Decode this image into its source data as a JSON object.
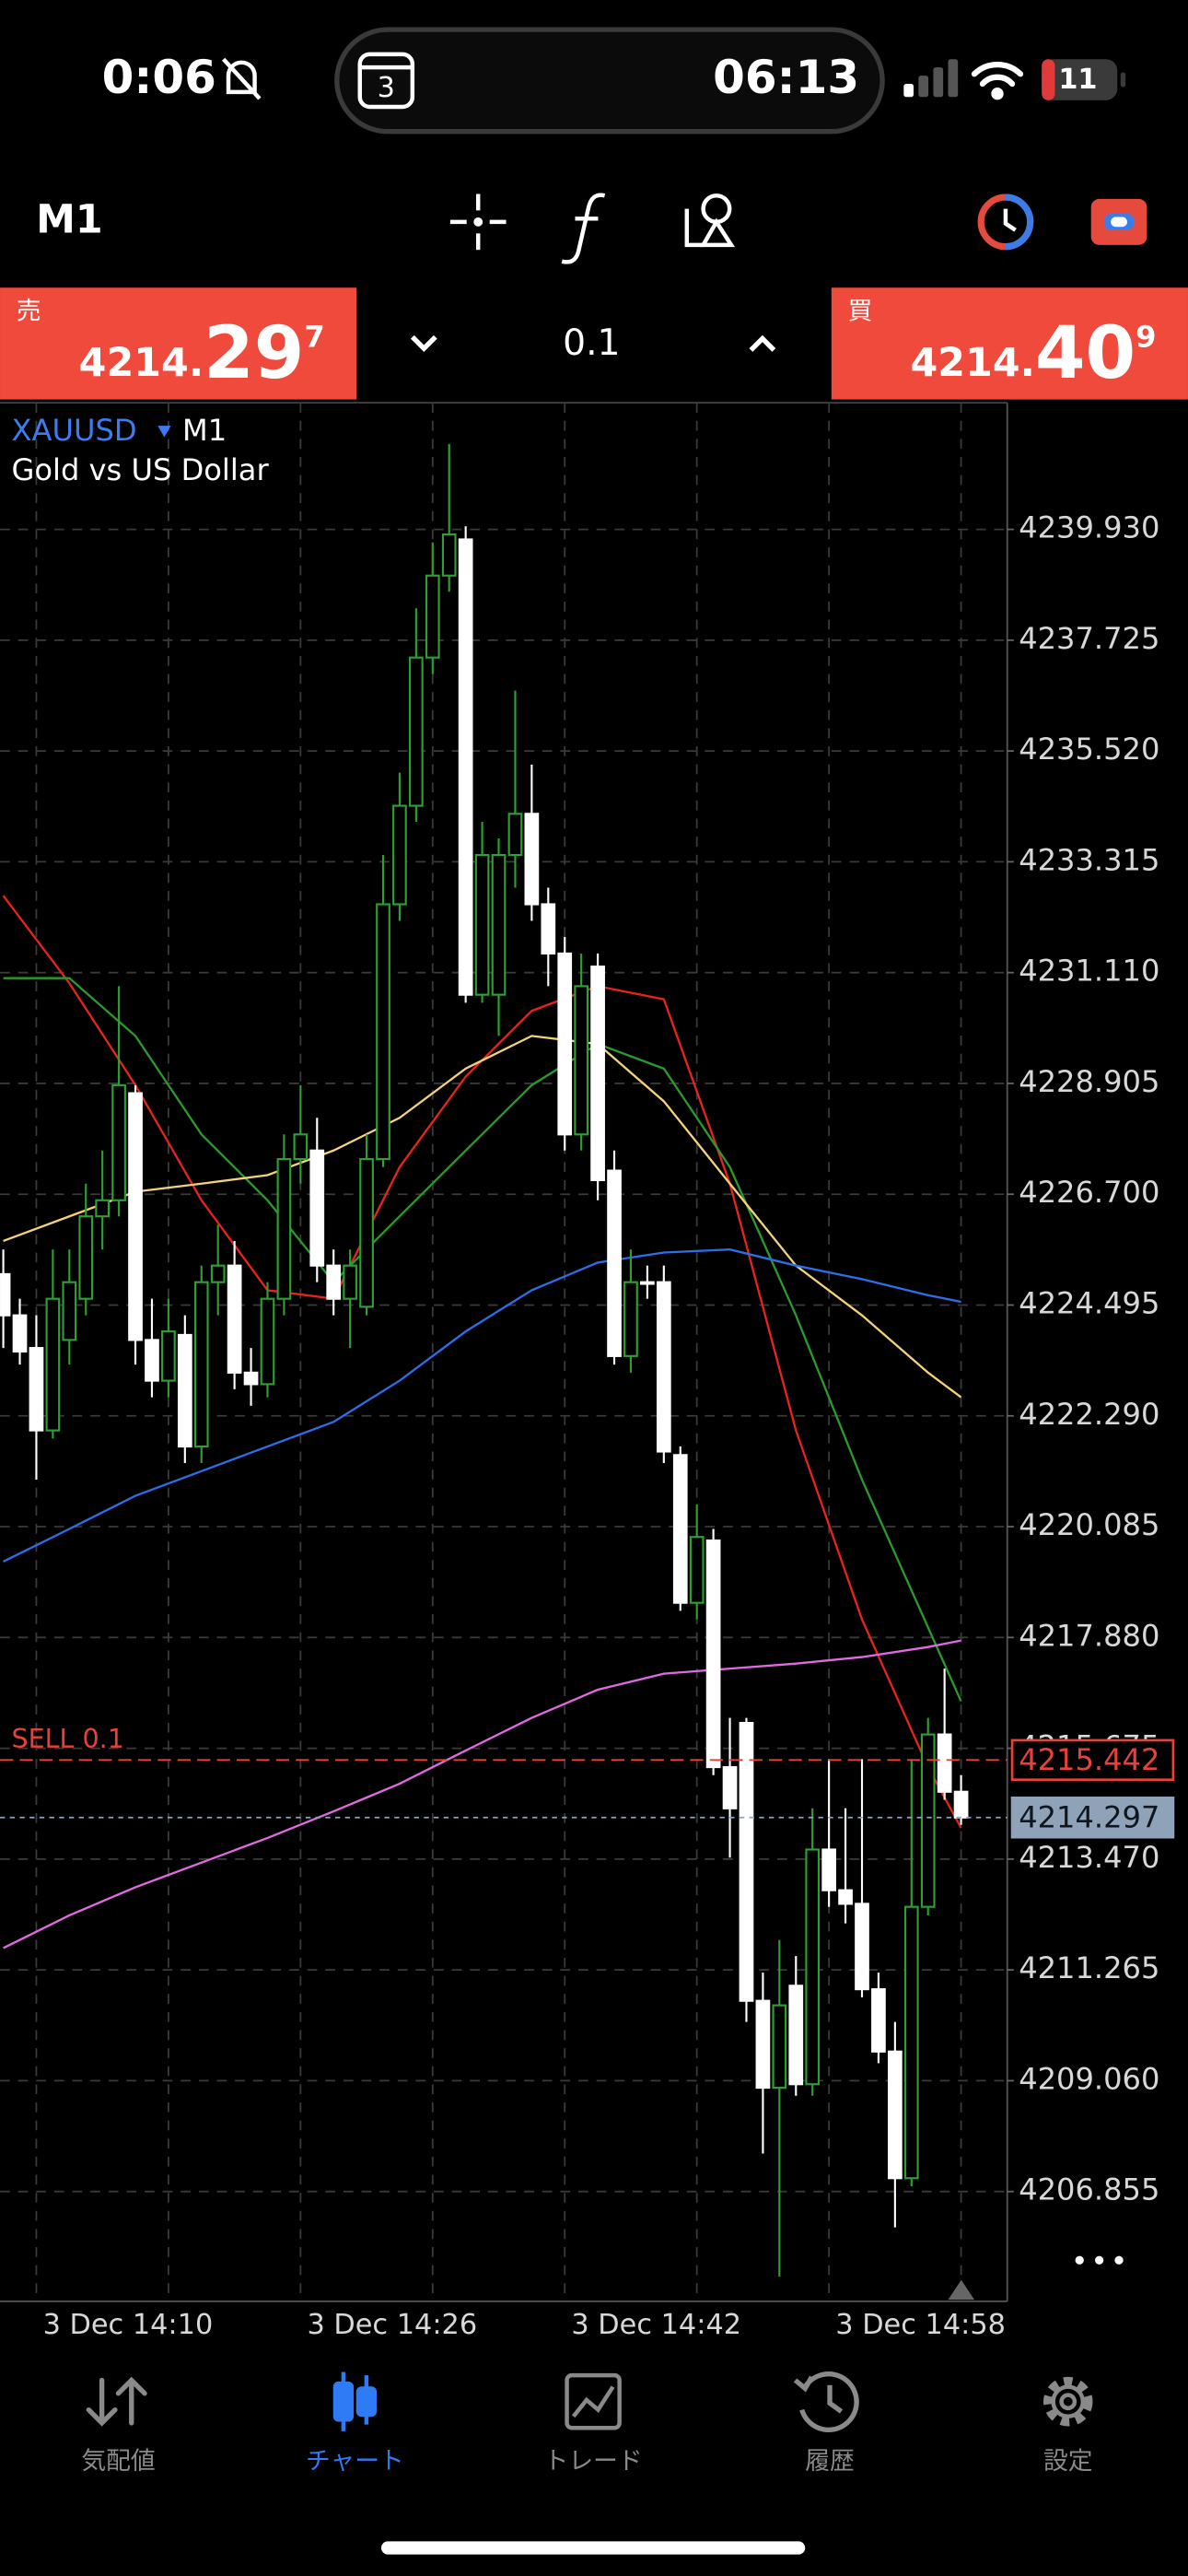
{
  "status_bar": {
    "time": "0:06",
    "island_time": "06:13",
    "calendar_day": "3",
    "battery": "11"
  },
  "toolbar": {
    "timeframe": "M1"
  },
  "trade_panel": {
    "sell": {
      "label": "売",
      "price_main": "4214.",
      "price_big": "29",
      "price_pip": "7"
    },
    "lot": "0.1",
    "buy": {
      "label": "買",
      "price_main": "4214.",
      "price_big": "40",
      "price_pip": "9"
    }
  },
  "chart_data": {
    "type": "candlestick",
    "symbol": "XAUUSD",
    "timeframe": "M1",
    "subtitle": "Gold vs US Dollar",
    "categories": [
      null,
      null,
      "3 Dec 14:10",
      null,
      null,
      null,
      null,
      null,
      null,
      null,
      null,
      null,
      null,
      null,
      null,
      null,
      null,
      null,
      "3 Dec 14:26",
      null,
      null,
      null,
      null,
      null,
      null,
      null,
      null,
      null,
      null,
      null,
      null,
      null,
      null,
      null,
      "3 Dec 14:42",
      null,
      null,
      null,
      null,
      null,
      null,
      null,
      null,
      null,
      null,
      null,
      null,
      null,
      null,
      null,
      "3 Dec 14:58",
      null,
      null,
      null,
      null,
      null,
      null,
      null,
      null
    ],
    "open": [
      4225.11,
      4224.29,
      4223.64,
      4222.0,
      4223.8,
      4224.62,
      4226.26,
      4226.58,
      4228.71,
      4223.8,
      4222.99,
      4223.9,
      4221.68,
      4224.95,
      4225.28,
      4223.15,
      4222.92,
      4224.62,
      4227.4,
      4227.57,
      4225.28,
      4224.62,
      4224.46,
      4227.4,
      4232.47,
      4234.43,
      4237.38,
      4239.01,
      4239.73,
      4230.67,
      4230.67,
      4233.45,
      4234.27,
      4232.47,
      4231.49,
      4227.89,
      4231.23,
      4227.17,
      4223.48,
      4224.95,
      4224.95,
      4221.51,
      4218.57,
      4219.81,
      4215.3,
      4216.18,
      4210.65,
      4208.92,
      4210.95,
      4208.99,
      4213.66,
      4212.85,
      4212.58,
      4210.88,
      4209.64,
      4207.12,
      4212.52,
      4215.95,
      4214.81
    ],
    "high": [
      4225.6,
      4224.62,
      4224.29,
      4225.6,
      4225.6,
      4226.91,
      4227.57,
      4230.84,
      4228.87,
      4224.62,
      4224.62,
      4224.29,
      4225.28,
      4226.09,
      4225.77,
      4223.64,
      4224.95,
      4227.89,
      4228.87,
      4228.22,
      4225.6,
      4225.6,
      4227.89,
      4233.45,
      4235.09,
      4238.36,
      4239.67,
      4241.63,
      4239.99,
      4234.11,
      4233.78,
      4236.72,
      4235.25,
      4232.8,
      4231.82,
      4231.49,
      4231.49,
      4227.57,
      4225.6,
      4225.28,
      4225.28,
      4221.68,
      4220.53,
      4220.04,
      4216.28,
      4216.28,
      4211.21,
      4211.86,
      4211.54,
      4214.48,
      4215.46,
      4214.48,
      4215.46,
      4211.21,
      4210.23,
      4215.46,
      4216.28,
      4217.26,
      4215.14
    ],
    "low": [
      4223.64,
      4223.31,
      4221.02,
      4221.84,
      4223.31,
      4224.29,
      4225.6,
      4226.26,
      4223.31,
      4222.66,
      4222.66,
      4221.35,
      4221.35,
      4224.29,
      4222.82,
      4222.49,
      4222.66,
      4224.29,
      4226.91,
      4224.95,
      4224.29,
      4223.64,
      4224.29,
      4227.24,
      4232.14,
      4234.11,
      4237.05,
      4238.69,
      4230.51,
      4230.51,
      4229.85,
      4232.8,
      4232.14,
      4230.84,
      4227.57,
      4227.57,
      4226.58,
      4223.31,
      4223.15,
      4224.62,
      4221.35,
      4218.41,
      4218.24,
      4215.14,
      4213.5,
      4210.23,
      4207.61,
      4205.16,
      4208.76,
      4208.76,
      4212.52,
      4212.19,
      4210.72,
      4209.41,
      4206.14,
      4206.96,
      4212.35,
      4214.65,
      4214.15
    ],
    "close": [
      4224.29,
      4223.57,
      4222.0,
      4224.62,
      4224.95,
      4226.26,
      4226.58,
      4228.87,
      4223.8,
      4222.99,
      4223.97,
      4221.68,
      4224.95,
      4225.28,
      4223.15,
      4222.92,
      4224.62,
      4227.4,
      4227.89,
      4225.28,
      4224.62,
      4225.28,
      4227.4,
      4232.47,
      4234.43,
      4237.38,
      4239.01,
      4239.83,
      4230.67,
      4233.45,
      4233.45,
      4234.27,
      4232.47,
      4231.49,
      4227.89,
      4230.84,
      4226.98,
      4223.48,
      4224.95,
      4224.95,
      4221.58,
      4218.57,
      4219.88,
      4215.3,
      4214.48,
      4210.65,
      4208.92,
      4210.56,
      4208.99,
      4213.66,
      4212.85,
      4212.58,
      4210.88,
      4209.64,
      4207.12,
      4212.52,
      4215.95,
      4214.81,
      4214.297
    ],
    "up_color": "#2f9e35",
    "down_color": "#ffffff",
    "indicators": [
      {
        "color": "#e8231d",
        "x": [
          0,
          4,
          8,
          12,
          16,
          20,
          24,
          28,
          32,
          36,
          40,
          44,
          48,
          52,
          56,
          58
        ],
        "values": [
          4232.64,
          4230.9,
          4228.87,
          4226.58,
          4224.79,
          4224.62,
          4227.24,
          4229.04,
          4230.35,
          4230.84,
          4230.58,
          4226.91,
          4222.0,
          4218.24,
          4215.3,
          4214.09
        ]
      },
      {
        "color": "#2a9a2a",
        "x": [
          0,
          4,
          8,
          12,
          16,
          20,
          24,
          28,
          32,
          36,
          40,
          44,
          48,
          52,
          56,
          58
        ],
        "values": [
          4231.0,
          4231.0,
          4229.85,
          4227.89,
          4226.58,
          4224.95,
          4226.26,
          4227.57,
          4228.87,
          4229.69,
          4229.2,
          4227.24,
          4224.29,
          4221.02,
          4218.08,
          4216.61
        ]
      },
      {
        "color": "#f2d27a",
        "x": [
          0,
          4,
          8,
          12,
          16,
          20,
          24,
          28,
          32,
          36,
          40,
          44,
          48,
          52,
          56,
          58
        ],
        "values": [
          4225.77,
          4226.26,
          4226.75,
          4226.91,
          4227.08,
          4227.57,
          4228.22,
          4229.2,
          4229.85,
          4229.69,
          4228.55,
          4226.91,
          4225.28,
          4224.29,
          4223.15,
          4222.66
        ]
      },
      {
        "color": "#2d6ee6",
        "x": [
          0,
          4,
          8,
          12,
          16,
          20,
          24,
          28,
          32,
          36,
          40,
          44,
          48,
          52,
          56,
          58
        ],
        "values": [
          4219.39,
          4220.04,
          4220.7,
          4221.19,
          4221.68,
          4222.17,
          4222.99,
          4223.97,
          4224.79,
          4225.34,
          4225.54,
          4225.6,
          4225.28,
          4225.01,
          4224.69,
          4224.56
        ]
      },
      {
        "color": "#e06ae0",
        "x": [
          0,
          4,
          8,
          12,
          16,
          20,
          24,
          28,
          32,
          36,
          40,
          44,
          48,
          52,
          56,
          58
        ],
        "values": [
          4211.7,
          4212.35,
          4212.91,
          4213.4,
          4213.89,
          4214.42,
          4214.97,
          4215.63,
          4216.28,
          4216.84,
          4217.16,
          4217.26,
          4217.36,
          4217.49,
          4217.69,
          4217.82
        ]
      }
    ],
    "price_lines": [
      {
        "label": "SELL 0.1",
        "value": 4215.442,
        "color": "#e8413a"
      },
      {
        "value": 4214.297,
        "color": "#8fa3b8"
      }
    ],
    "ylim": [
      4204.67,
      4242.45
    ],
    "yticks": [
      {
        "value": 4239.93,
        "label": "4239.930"
      },
      {
        "value": 4237.725,
        "label": "4237.725"
      },
      {
        "value": 4235.52,
        "label": "4235.520"
      },
      {
        "value": 4233.315,
        "label": "4233.315"
      },
      {
        "value": 4231.11,
        "label": "4231.110"
      },
      {
        "value": 4228.905,
        "label": "4228.905"
      },
      {
        "value": 4226.7,
        "label": "4226.700"
      },
      {
        "value": 4224.495,
        "label": "4224.495"
      },
      {
        "value": 4222.29,
        "label": "4222.290"
      },
      {
        "value": 4220.085,
        "label": "4220.085"
      },
      {
        "value": 4217.88,
        "label": "4217.880"
      },
      {
        "value": 4215.675,
        "label": "4215.675"
      },
      {
        "value": 4213.47,
        "label": "4213.470"
      },
      {
        "value": 4211.265,
        "label": "4211.265"
      },
      {
        "value": 4209.06,
        "label": "4209.060"
      },
      {
        "value": 4206.855,
        "label": "4206.855"
      }
    ],
    "grid": true
  },
  "tabs": [
    "気配値",
    "チャート",
    "トレード",
    "履歴",
    "設定"
  ]
}
